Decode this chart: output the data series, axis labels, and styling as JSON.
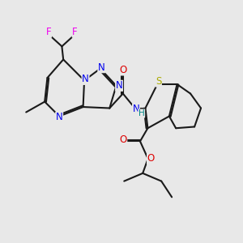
{
  "bg": "#e8e8e8",
  "bc": "#1a1a1a",
  "bw": 1.5,
  "dbo": 0.06,
  "colors": {
    "N": "#0000ee",
    "O": "#dd0000",
    "S": "#aaaa00",
    "F": "#ee00ee",
    "H": "#008888",
    "C": "#1a1a1a"
  },
  "fs": 8.5,
  "figsize": [
    3.0,
    3.0
  ],
  "dpi": 100
}
